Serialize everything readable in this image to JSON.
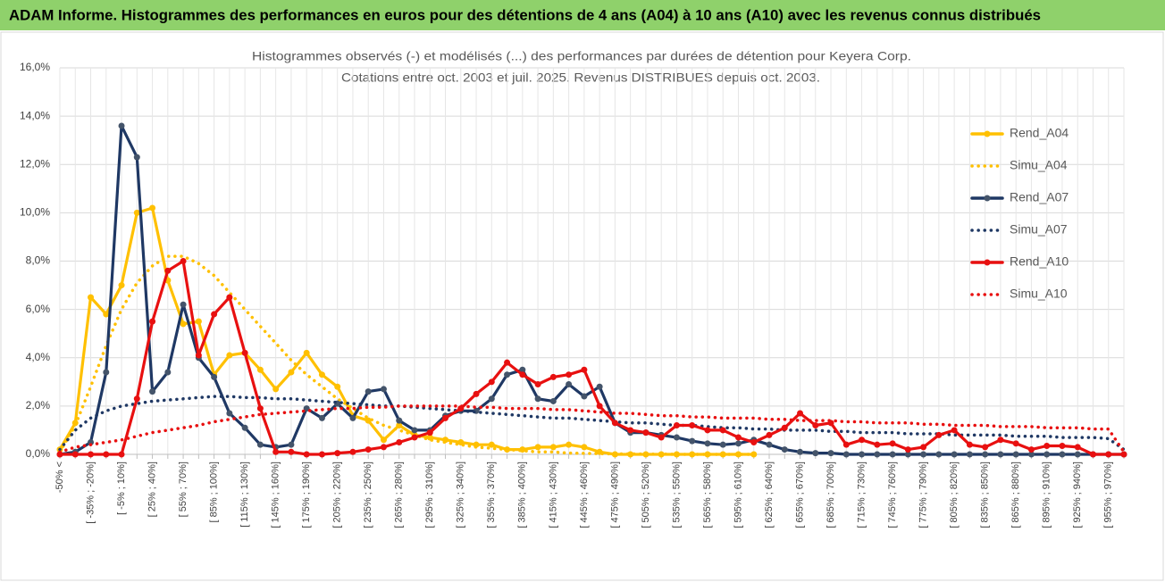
{
  "header": {
    "title": "ADAM Informe. Histogrammes des performances en euros pour des détentions de 4 ans (A04) à 10 ans (A10) avec les revenus connus distribués"
  },
  "chart_data": {
    "type": "line",
    "title": "Histogrammes observés (-)  et modélisés (...) des performances par durées de détention pour Keyera Corp.",
    "subtitle": "Cotations entre oct. 2003 et juil. 2025. Revenus DISTRIBUES depuis oct. 2003.",
    "categories": [
      "-50% <",
      null,
      "[ -35% ; -20%]",
      null,
      "[ -5% ; 10%]",
      null,
      "[ 25% ; 40%]",
      null,
      "[ 55% ; 70%]",
      null,
      "[ 85% ; 100%]",
      null,
      "[ 115% ; 130%]",
      null,
      "[ 145% ; 160%]",
      null,
      "[ 175% ; 190%]",
      null,
      "[ 205% ; 220%]",
      null,
      "[ 235% ; 250%]",
      null,
      "[ 265% ; 280%]",
      null,
      "[ 295% ; 310%]",
      null,
      "[ 325% ; 340%]",
      null,
      "[ 355% ; 370%]",
      null,
      "[ 385% ; 400%]",
      null,
      "[ 415% ; 430%]",
      null,
      "[ 445% ; 460%]",
      null,
      "[ 475% ; 490%]",
      null,
      "[ 505% ; 520%]",
      null,
      "[ 535% ; 550%]",
      null,
      "[ 565% ; 580%]",
      null,
      "[ 595% ; 610%]",
      null,
      "[ 625% ; 640%]",
      null,
      "[ 655% ; 670%]",
      null,
      "[ 685% ; 700%]",
      null,
      "[ 715% ; 730%]",
      null,
      "[ 745% ; 760%]",
      null,
      "[ 775% ; 790%]",
      null,
      "[ 805% ; 820%]",
      null,
      "[ 835% ; 850%]",
      null,
      "[ 865% ; 880%]",
      null,
      "[ 895% ; 910%]",
      null,
      "[ 925% ; 940%]",
      null,
      "[ 955% ; 970%]",
      null
    ],
    "series": [
      {
        "name": "Rend_A04",
        "color": "#ffc000",
        "dash": "solid",
        "values": [
          0.2,
          1.3,
          6.5,
          5.8,
          7.0,
          10.0,
          10.2,
          7.2,
          5.4,
          5.5,
          3.3,
          4.1,
          4.2,
          3.5,
          2.7,
          3.4,
          4.2,
          3.3,
          2.8,
          1.6,
          1.4,
          0.6,
          1.2,
          0.8,
          0.7,
          0.6,
          0.5,
          0.4,
          0.4,
          0.2,
          0.2,
          0.3,
          0.3,
          0.4,
          0.3,
          0.1,
          0,
          0,
          0,
          0,
          0,
          0,
          0,
          0,
          0,
          0,
          null,
          null,
          null,
          null,
          null,
          null,
          null,
          null,
          null,
          null,
          null,
          null,
          null,
          null,
          null,
          null,
          null,
          null,
          null,
          null,
          null,
          null,
          null,
          null
        ]
      },
      {
        "name": "Simu_A04",
        "color": "#ffc000",
        "dash": "dotted",
        "values": [
          0.1,
          1.2,
          2.8,
          4.5,
          6.0,
          7.1,
          7.8,
          8.2,
          8.2,
          7.9,
          7.4,
          6.7,
          6.0,
          5.3,
          4.6,
          3.9,
          3.3,
          2.8,
          2.3,
          1.9,
          1.5,
          1.2,
          1.0,
          0.8,
          0.6,
          0.5,
          0.4,
          0.3,
          0.25,
          0.2,
          0.15,
          0.1,
          0.1,
          0.05,
          0.04,
          0.03,
          0.02,
          0.02,
          0.01,
          0.01,
          0,
          0,
          0,
          0,
          0,
          0,
          null,
          null,
          null,
          null,
          null,
          null,
          null,
          null,
          null,
          null,
          null,
          null,
          null,
          null,
          null,
          null,
          null,
          null,
          null,
          null,
          null,
          null,
          null,
          null
        ]
      },
      {
        "name": "Rend_A07",
        "color": "#1f3864",
        "dash": "solid",
        "values": [
          0,
          0.1,
          0.5,
          3.4,
          13.6,
          12.3,
          2.6,
          3.4,
          6.2,
          4.0,
          3.2,
          1.7,
          1.1,
          0.4,
          0.3,
          0.4,
          1.9,
          1.5,
          2.1,
          1.5,
          2.6,
          2.7,
          1.4,
          1.0,
          1.0,
          1.6,
          1.8,
          1.8,
          2.3,
          3.3,
          3.5,
          2.3,
          2.2,
          2.9,
          2.4,
          2.8,
          1.3,
          0.9,
          0.9,
          0.8,
          0.7,
          0.55,
          0.45,
          0.4,
          0.45,
          0.6,
          0.4,
          0.2,
          0.1,
          0.05,
          0.05,
          0,
          0,
          0,
          0,
          0,
          0,
          0,
          0,
          0,
          0,
          0,
          0,
          0,
          0,
          0,
          0,
          0,
          0,
          0
        ]
      },
      {
        "name": "Simu_A07",
        "color": "#1f3864",
        "dash": "dotted",
        "values": [
          0.2,
          1.0,
          1.5,
          1.8,
          2.0,
          2.1,
          2.2,
          2.25,
          2.3,
          2.35,
          2.4,
          2.4,
          2.35,
          2.35,
          2.3,
          2.3,
          2.25,
          2.2,
          2.15,
          2.1,
          2.05,
          2.0,
          2.0,
          1.95,
          1.9,
          1.85,
          1.8,
          1.75,
          1.7,
          1.65,
          1.6,
          1.55,
          1.5,
          1.5,
          1.45,
          1.4,
          1.35,
          1.3,
          1.3,
          1.25,
          1.2,
          1.2,
          1.15,
          1.1,
          1.1,
          1.05,
          1.05,
          1.0,
          1.0,
          1.0,
          0.95,
          0.95,
          0.9,
          0.9,
          0.9,
          0.85,
          0.85,
          0.85,
          0.8,
          0.8,
          0.8,
          0.8,
          0.75,
          0.75,
          0.75,
          0.7,
          0.7,
          0.7,
          0.65,
          0.2
        ]
      },
      {
        "name": "Rend_A10",
        "color": "#e81010",
        "dash": "solid",
        "values": [
          0,
          0,
          0,
          0,
          0,
          2.3,
          5.5,
          7.6,
          8.0,
          4.1,
          5.8,
          6.5,
          4.2,
          1.9,
          0.1,
          0.1,
          0,
          0,
          0.05,
          0.1,
          0.2,
          0.3,
          0.5,
          0.7,
          0.9,
          1.5,
          1.9,
          2.5,
          3.0,
          3.8,
          3.3,
          2.9,
          3.2,
          3.3,
          3.5,
          2.0,
          1.3,
          1.0,
          0.9,
          0.7,
          1.2,
          1.2,
          1.0,
          1.0,
          0.7,
          0.5,
          0.8,
          1.1,
          1.7,
          1.2,
          1.3,
          0.4,
          0.6,
          0.4,
          0.45,
          0.2,
          0.3,
          0.8,
          1.0,
          0.4,
          0.3,
          0.6,
          0.45,
          0.2,
          0.35,
          0.35,
          0.3,
          0,
          0,
          0
        ]
      },
      {
        "name": "Simu_A10",
        "color": "#e81010",
        "dash": "dotted",
        "values": [
          0.1,
          0.3,
          0.4,
          0.5,
          0.6,
          0.75,
          0.9,
          1.0,
          1.1,
          1.2,
          1.35,
          1.45,
          1.55,
          1.65,
          1.7,
          1.75,
          1.8,
          1.85,
          1.9,
          1.9,
          1.95,
          1.95,
          2.0,
          2.0,
          2.0,
          2.0,
          2.0,
          1.95,
          1.95,
          1.9,
          1.9,
          1.9,
          1.85,
          1.85,
          1.8,
          1.75,
          1.7,
          1.7,
          1.65,
          1.6,
          1.6,
          1.55,
          1.55,
          1.5,
          1.5,
          1.5,
          1.45,
          1.45,
          1.4,
          1.4,
          1.4,
          1.35,
          1.35,
          1.3,
          1.3,
          1.3,
          1.25,
          1.25,
          1.2,
          1.2,
          1.2,
          1.15,
          1.15,
          1.15,
          1.1,
          1.1,
          1.1,
          1.05,
          1.05,
          0.1
        ]
      }
    ],
    "ylim": [
      0,
      16
    ],
    "yticks": [
      {
        "value": 0,
        "label": "0,0%"
      },
      {
        "value": 2,
        "label": "2,0%"
      },
      {
        "value": 4,
        "label": "4,0%"
      },
      {
        "value": 6,
        "label": "6,0%"
      },
      {
        "value": 8,
        "label": "8,0%"
      },
      {
        "value": 10,
        "label": "10,0%"
      },
      {
        "value": 12,
        "label": "12,0%"
      },
      {
        "value": 14,
        "label": "14,0%"
      },
      {
        "value": 16,
        "label": "16,0%"
      }
    ],
    "grid": true,
    "legend": "right"
  }
}
